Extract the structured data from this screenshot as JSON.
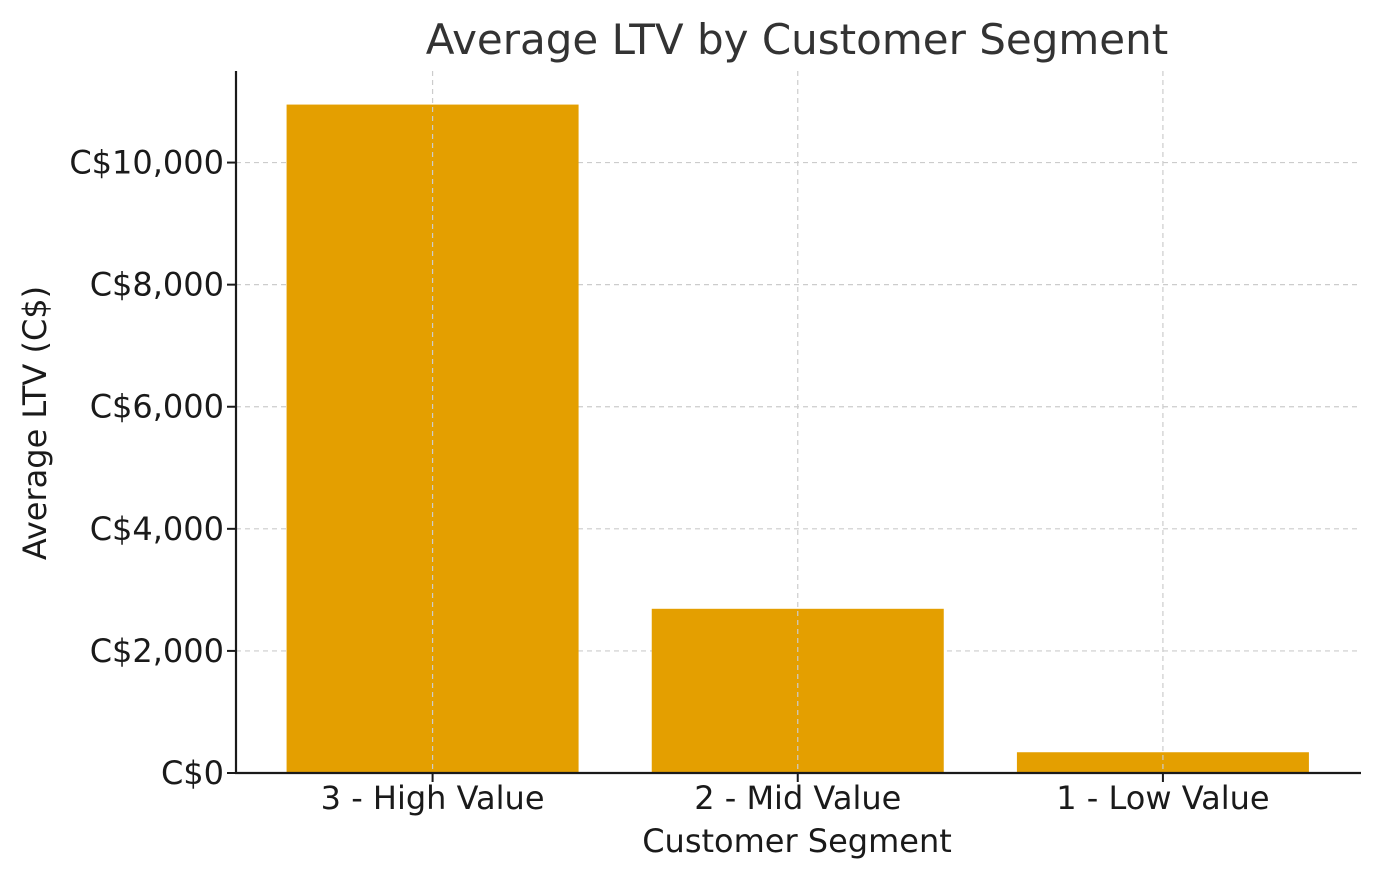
{
  "chart_data": {
    "type": "bar",
    "title": "Average LTV by Customer Segment",
    "xlabel": "Customer Segment",
    "ylabel": "Average LTV (C$)",
    "categories": [
      "3 - High Value",
      "2 - Mid Value",
      "1 - Low Value"
    ],
    "values": [
      10950,
      2690,
      340
    ],
    "ylim": [
      0,
      11500
    ],
    "yticks": [
      0,
      2000,
      4000,
      6000,
      8000,
      10000
    ],
    "ytick_labels": [
      "C$0",
      "C$2,000",
      "C$4,000",
      "C$6,000",
      "C$8,000",
      "C$10,000"
    ],
    "grid": true,
    "bar_color": "#E49F00"
  }
}
